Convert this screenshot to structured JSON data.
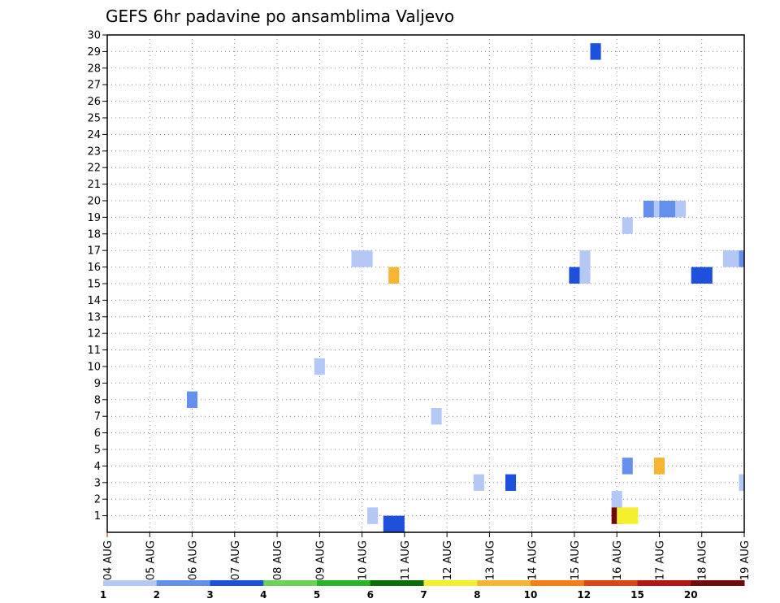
{
  "chart_data": {
    "type": "heatmap",
    "title": "GEFS 6hr padavine po ansamblima Valjevo",
    "y_ticks": [
      1,
      2,
      3,
      4,
      5,
      6,
      7,
      8,
      9,
      10,
      11,
      12,
      13,
      14,
      15,
      16,
      17,
      18,
      19,
      20,
      21,
      22,
      23,
      24,
      25,
      26,
      27,
      28,
      29,
      30
    ],
    "ylim": [
      0,
      30
    ],
    "xlim": [
      0,
      15
    ],
    "x_tick_labels": [
      "04 AUG",
      "05 AUG",
      "06 AUG",
      "07 AUG",
      "08 AUG",
      "09 AUG",
      "10 AUG",
      "11 AUG",
      "12 AUG",
      "13 AUG",
      "14 AUG",
      "15 AUG",
      "16 AUG",
      "17 AUG",
      "18 AUG",
      "19 AUG"
    ],
    "grid": true,
    "legend_position": "bottom",
    "legend": {
      "labels": [
        "1",
        "2",
        "3",
        "4",
        "5",
        "6",
        "7",
        "8",
        "10",
        "12",
        "15",
        "20"
      ],
      "colors": [
        "#b4c8f5",
        "#6490ec",
        "#1e50dc",
        "#6ed25a",
        "#28b428",
        "#0a6e0a",
        "#f5f02d",
        "#f5b432",
        "#f57f14",
        "#dc4614",
        "#b41414",
        "#6e0a0a"
      ]
    },
    "cells": [
      {
        "day": 6.75,
        "member": 0.5,
        "level": 3
      },
      {
        "day": 6.25,
        "member": 1,
        "level": 1
      },
      {
        "day": 2.0,
        "member": 8,
        "level": 2
      },
      {
        "day": 5.0,
        "member": 10,
        "level": 1
      },
      {
        "day": 7.75,
        "member": 7,
        "level": 1
      },
      {
        "day": 8.75,
        "member": 3,
        "level": 1
      },
      {
        "day": 9.5,
        "member": 3,
        "level": 3
      },
      {
        "day": 6.0,
        "member": 16.5,
        "level": 1
      },
      {
        "day": 6.75,
        "member": 15.5,
        "level": 8
      },
      {
        "day": 11.0,
        "member": 15.5,
        "level": 3
      },
      {
        "day": 11.25,
        "member": 15.5,
        "level": 1
      },
      {
        "day": 11.25,
        "member": 16.5,
        "level": 1
      },
      {
        "day": 12.0,
        "member": 2,
        "level": 1
      },
      {
        "day": 12.0,
        "member": 1,
        "level": 12
      },
      {
        "day": 12.25,
        "member": 1,
        "level": 7
      },
      {
        "day": 12.25,
        "member": 4,
        "level": 2
      },
      {
        "day": 12.25,
        "member": 18.5,
        "level": 1
      },
      {
        "day": 12.75,
        "member": 19.5,
        "level": 2
      },
      {
        "day": 13.0,
        "member": 4,
        "level": 8
      },
      {
        "day": 13.0,
        "member": 19.5,
        "level": 1
      },
      {
        "day": 13.25,
        "member": 19.5,
        "level": 2
      },
      {
        "day": 13.5,
        "member": 19.5,
        "level": 1
      },
      {
        "day": 14.0,
        "member": 15.5,
        "level": 3
      },
      {
        "day": 11.5,
        "member": 29,
        "level": 3
      },
      {
        "day": 14.75,
        "member": 16.5,
        "level": 1
      },
      {
        "day": 15.0,
        "member": 16.5,
        "level": 2
      },
      {
        "day": 15.0,
        "member": 3,
        "level": 1
      }
    ],
    "cell_widths": [
      0.5,
      0.25,
      0.25,
      0.25,
      0.25,
      0.25,
      0.25,
      0.5,
      0.25,
      0.25,
      0.25,
      0.25,
      0.25,
      0.25,
      0.5,
      0.25,
      0.25,
      0.25,
      0.25,
      0.25,
      0.5,
      0.25,
      0.5,
      0.25,
      0.5,
      0.25,
      0.25
    ],
    "cell_heights": [
      1,
      1,
      1,
      1,
      1,
      1,
      1,
      1,
      1,
      1,
      1,
      1,
      1,
      1,
      1,
      1,
      1,
      1,
      1,
      1,
      1,
      1,
      1,
      1,
      1,
      1,
      1
    ]
  }
}
